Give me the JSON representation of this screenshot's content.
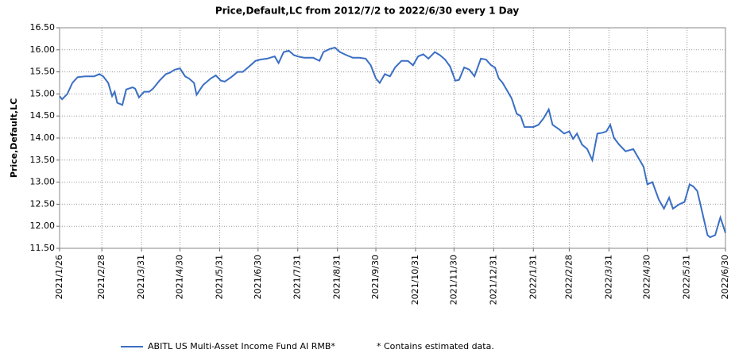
{
  "chart_data": {
    "type": "line",
    "title": "Price,Default,LC from 2012/7/2 to 2022/6/30 every 1 Day",
    "y_label": "Price,Default,LC",
    "note": "*  Contains estimated data.",
    "grid": true,
    "x": [
      "2021/1/26",
      "2021/1/28",
      "2021/2/1",
      "2021/2/5",
      "2021/2/9",
      "2021/2/15",
      "2021/2/22",
      "2021/2/26",
      "2021/3/1",
      "2021/3/5",
      "2021/3/8",
      "2021/3/10",
      "2021/3/12",
      "2021/3/16",
      "2021/3/19",
      "2021/3/24",
      "2021/3/26",
      "2021/3/29",
      "2021/4/2",
      "2021/4/6",
      "2021/4/9",
      "2021/4/14",
      "2021/4/19",
      "2021/4/22",
      "2021/4/26",
      "2021/4/30",
      "2021/5/4",
      "2021/5/7",
      "2021/5/11",
      "2021/5/13",
      "2021/5/18",
      "2021/5/24",
      "2021/5/28",
      "2021/6/1",
      "2021/6/4",
      "2021/6/9",
      "2021/6/14",
      "2021/6/18",
      "2021/6/23",
      "2021/6/28",
      "2021/7/2",
      "2021/7/7",
      "2021/7/13",
      "2021/7/16",
      "2021/7/20",
      "2021/7/24",
      "2021/7/28",
      "2021/7/31",
      "2021/8/5",
      "2021/8/12",
      "2021/8/17",
      "2021/8/20",
      "2021/8/25",
      "2021/8/29",
      "2021/9/2",
      "2021/9/7",
      "2021/9/12",
      "2021/9/17",
      "2021/9/22",
      "2021/9/26",
      "2021/9/30",
      "2021/10/3",
      "2021/10/7",
      "2021/10/11",
      "2021/10/15",
      "2021/10/20",
      "2021/10/25",
      "2021/10/29",
      "2021/11/2",
      "2021/11/6",
      "2021/11/10",
      "2021/11/15",
      "2021/11/19",
      "2021/11/23",
      "2021/11/27",
      "2021/12/1",
      "2021/12/4",
      "2021/12/8",
      "2021/12/12",
      "2021/12/16",
      "2021/12/21",
      "2021/12/25",
      "2021/12/29",
      "2022/1/1",
      "2022/1/4",
      "2022/1/7",
      "2022/1/10",
      "2022/1/14",
      "2022/1/18",
      "2022/1/21",
      "2022/1/24",
      "2022/1/31",
      "2022/2/4",
      "2022/2/8",
      "2022/2/12",
      "2022/2/15",
      "2022/2/20",
      "2022/2/24",
      "2022/2/28",
      "2022/3/3",
      "2022/3/6",
      "2022/3/10",
      "2022/3/14",
      "2022/3/18",
      "2022/3/22",
      "2022/3/26",
      "2022/3/29",
      "2022/4/1",
      "2022/4/4",
      "2022/4/8",
      "2022/4/13",
      "2022/4/19",
      "2022/4/23",
      "2022/4/27",
      "2022/4/30",
      "2022/5/4",
      "2022/5/9",
      "2022/5/13",
      "2022/5/17",
      "2022/5/20",
      "2022/5/25",
      "2022/5/29",
      "2022/6/2",
      "2022/6/5",
      "2022/6/8",
      "2022/6/12",
      "2022/6/16",
      "2022/6/18",
      "2022/6/22",
      "2022/6/24",
      "2022/6/26",
      "2022/6/30"
    ],
    "series": [
      {
        "name": "ABITL US Multi-Asset Income Fund AI RMB*",
        "color": "#3a6fc4",
        "values": [
          14.95,
          14.88,
          15.0,
          15.25,
          15.38,
          15.4,
          15.4,
          15.45,
          15.4,
          15.25,
          14.95,
          15.05,
          14.8,
          14.75,
          15.1,
          15.15,
          15.12,
          14.92,
          15.05,
          15.05,
          15.12,
          15.3,
          15.45,
          15.48,
          15.55,
          15.58,
          15.4,
          15.35,
          15.25,
          14.98,
          15.2,
          15.35,
          15.42,
          15.3,
          15.28,
          15.38,
          15.5,
          15.5,
          15.62,
          15.75,
          15.78,
          15.8,
          15.85,
          15.7,
          15.95,
          15.98,
          15.88,
          15.85,
          15.82,
          15.82,
          15.75,
          15.95,
          16.02,
          16.05,
          15.95,
          15.88,
          15.82,
          15.82,
          15.8,
          15.65,
          15.35,
          15.25,
          15.45,
          15.4,
          15.6,
          15.75,
          15.75,
          15.65,
          15.85,
          15.9,
          15.8,
          15.95,
          15.88,
          15.78,
          15.62,
          15.3,
          15.32,
          15.6,
          15.55,
          15.4,
          15.8,
          15.78,
          15.65,
          15.6,
          15.35,
          15.25,
          15.1,
          14.9,
          14.55,
          14.5,
          14.25,
          14.25,
          14.3,
          14.45,
          14.65,
          14.3,
          14.2,
          14.1,
          14.15,
          13.98,
          14.1,
          13.85,
          13.75,
          13.5,
          14.1,
          14.12,
          14.15,
          14.3,
          14.0,
          13.85,
          13.7,
          13.75,
          13.55,
          13.35,
          12.95,
          13.0,
          12.6,
          12.4,
          12.65,
          12.4,
          12.5,
          12.55,
          12.95,
          12.9,
          12.8,
          12.3,
          11.8,
          11.75,
          11.8,
          12.0,
          12.2,
          11.85
        ]
      }
    ],
    "xlim": [
      "2021/1/26",
      "2022/6/30"
    ],
    "xticks": [
      "2021/1/26",
      "2021/2/28",
      "2021/3/31",
      "2021/4/30",
      "2021/5/31",
      "2021/6/30",
      "2021/7/31",
      "2021/8/31",
      "2021/9/30",
      "2021/10/31",
      "2021/11/30",
      "2021/12/31",
      "2022/1/31",
      "2022/2/28",
      "2022/3/31",
      "2022/4/30",
      "2022/5/31",
      "2022/6/30"
    ],
    "ylim": [
      11.5,
      16.5
    ],
    "yticks": [
      {
        "value": 11.5,
        "label": "11.50"
      },
      {
        "value": 12,
        "label": "12.00"
      },
      {
        "value": 12.5,
        "label": "12.50"
      },
      {
        "value": 13,
        "label": "13.00"
      },
      {
        "value": 13.5,
        "label": "13.50"
      },
      {
        "value": 14,
        "label": "14.00"
      },
      {
        "value": 14.5,
        "label": "14.50"
      },
      {
        "value": 15,
        "label": "15.00"
      },
      {
        "value": 15.5,
        "label": "15.50"
      },
      {
        "value": 16,
        "label": "16.00"
      },
      {
        "value": 16.5,
        "label": "16.50"
      }
    ]
  }
}
